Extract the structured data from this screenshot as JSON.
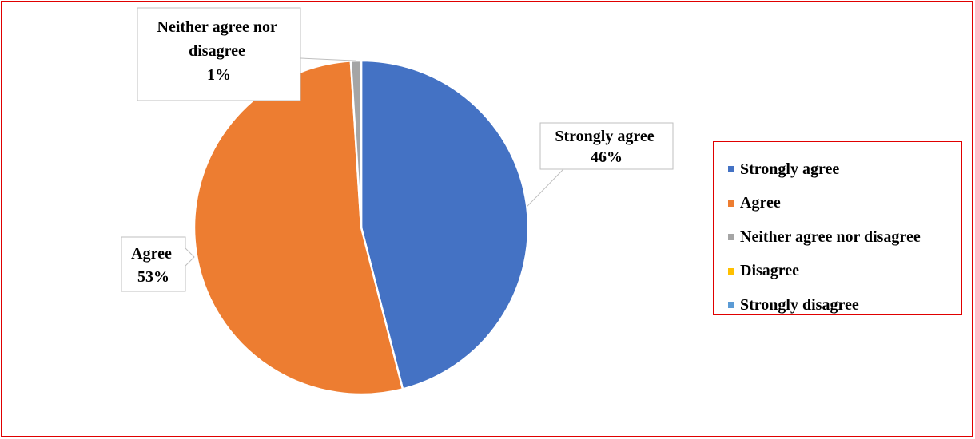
{
  "chart_data": {
    "type": "pie",
    "title": "",
    "categories": [
      "Strongly agree",
      "Agree",
      "Neither agree nor disagree",
      "Disagree",
      "Strongly disagree"
    ],
    "values": [
      46,
      53,
      1,
      0,
      0
    ],
    "colors": [
      "#4472c4",
      "#ed7d31",
      "#a5a5a5",
      "#ffc000",
      "#5b9bd5"
    ],
    "data_labels": [
      {
        "category": "Strongly agree",
        "lines": [
          "Strongly agree",
          "46%"
        ]
      },
      {
        "category": "Agree",
        "lines": [
          "Agree",
          "53%"
        ]
      },
      {
        "category": "Neither agree nor disagree",
        "lines": [
          "Neither agree nor",
          "disagree",
          "1%"
        ]
      }
    ],
    "legend_position": "right",
    "start_angle": "top, clockwise"
  },
  "legend": {
    "items": [
      {
        "label": "Strongly agree",
        "color": "#4472c4"
      },
      {
        "label": "Agree",
        "color": "#ed7d31"
      },
      {
        "label": "Neither agree nor disagree",
        "color": "#a5a5a5"
      },
      {
        "label": "Disagree",
        "color": "#ffc000"
      },
      {
        "label": "Strongly disagree",
        "color": "#5b9bd5"
      }
    ]
  }
}
